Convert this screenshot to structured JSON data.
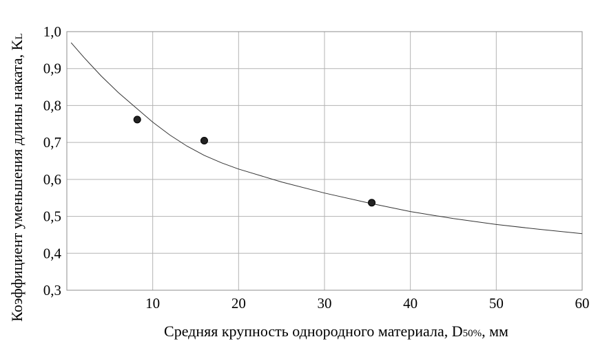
{
  "chart_data": {
    "type": "scatter",
    "title": "",
    "xlabel": {
      "main": "Средняя крупность однородного материала, D",
      "sub": "50%",
      "tail": ", мм"
    },
    "ylabel": {
      "main": "Коэффициент уменьшения длины наката, K",
      "sub": "L"
    },
    "xlim": [
      0,
      60
    ],
    "ylim": [
      0.3,
      1.0
    ],
    "x_ticks": [
      {
        "value": 10,
        "label": "10"
      },
      {
        "value": 20,
        "label": "20"
      },
      {
        "value": 30,
        "label": "30"
      },
      {
        "value": 40,
        "label": "40"
      },
      {
        "value": 50,
        "label": "50"
      },
      {
        "value": 60,
        "label": "60"
      }
    ],
    "y_ticks": [
      {
        "value": 0.3,
        "label": "0,3"
      },
      {
        "value": 0.4,
        "label": "0,4"
      },
      {
        "value": 0.5,
        "label": "0,5"
      },
      {
        "value": 0.6,
        "label": "0,6"
      },
      {
        "value": 0.7,
        "label": "0,7"
      },
      {
        "value": 0.8,
        "label": "0,8"
      },
      {
        "value": 0.9,
        "label": "0,9"
      },
      {
        "value": 1.0,
        "label": "1,0"
      }
    ],
    "grid": true,
    "series": [
      {
        "kind": "points",
        "x": [
          8.2,
          16.0,
          35.5
        ],
        "y": [
          0.762,
          0.705,
          0.537
        ]
      },
      {
        "kind": "line",
        "x": [
          0.5,
          2,
          4,
          6,
          8,
          10,
          12,
          14,
          16,
          18,
          20,
          25,
          30,
          35,
          40,
          45,
          50,
          55,
          60
        ],
        "y": [
          0.97,
          0.93,
          0.88,
          0.835,
          0.795,
          0.755,
          0.72,
          0.69,
          0.665,
          0.645,
          0.628,
          0.593,
          0.563,
          0.537,
          0.513,
          0.494,
          0.478,
          0.465,
          0.453
        ]
      }
    ]
  }
}
